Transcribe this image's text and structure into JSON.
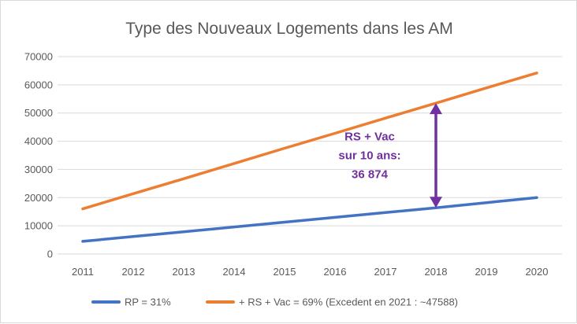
{
  "chart_data": {
    "type": "line",
    "title": "Type des Nouveaux Logements dans les AM",
    "xlabel": "",
    "ylabel": "",
    "x": [
      2011,
      2012,
      2013,
      2014,
      2015,
      2016,
      2017,
      2018,
      2019,
      2020
    ],
    "x_tick_labels": [
      "2011",
      "2012",
      "2013",
      "2014",
      "2015",
      "2016",
      "2017",
      "2018",
      "2019",
      "2020"
    ],
    "ylim": [
      0,
      70000
    ],
    "y_ticks": [
      0,
      10000,
      20000,
      30000,
      40000,
      50000,
      60000,
      70000
    ],
    "y_tick_labels": [
      "0",
      "10000",
      "20000",
      "30000",
      "40000",
      "50000",
      "60000",
      "70000"
    ],
    "grid": true,
    "legend_position": "bottom",
    "series": [
      {
        "name": "RP = 31%",
        "color": "#4472c4",
        "values": [
          4500,
          6200,
          7900,
          9600,
          11300,
          13000,
          14700,
          16400,
          18200,
          20000
        ]
      },
      {
        "name": "+ RS + Vac = 69% (Excedent en 2021 : ~47588)",
        "color": "#ed7d31",
        "values": [
          16000,
          21400,
          26700,
          32100,
          37500,
          42800,
          48200,
          53500,
          58900,
          64200
        ]
      }
    ],
    "annotation": {
      "lines": [
        "RS + Vac",
        "sur 10 ans:",
        "36 874"
      ],
      "color": "#7030a0",
      "x": 2018,
      "y_from": 16400,
      "y_to": 53500
    }
  }
}
